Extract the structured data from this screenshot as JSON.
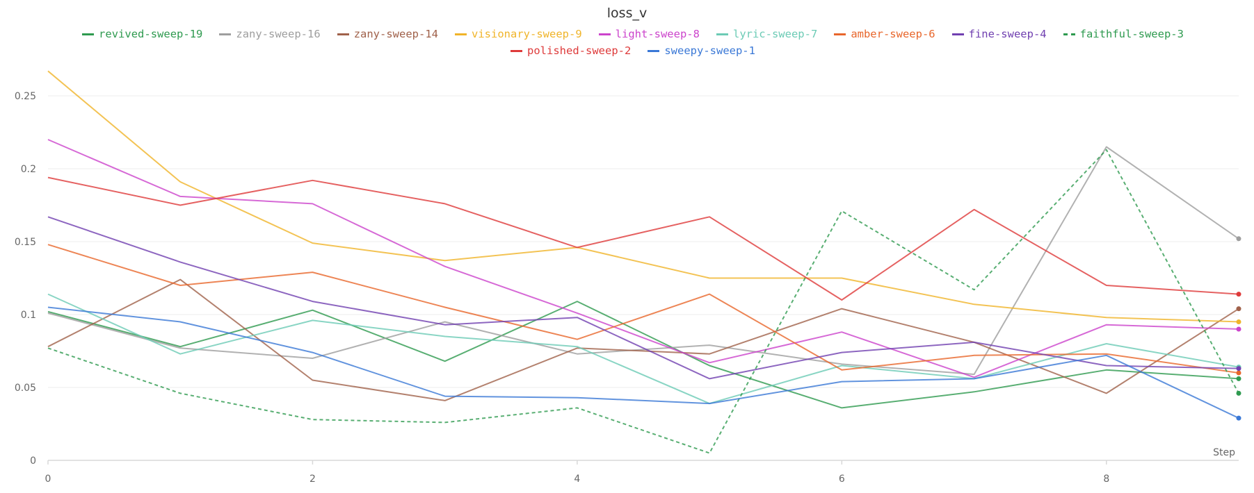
{
  "chart_data": {
    "type": "line",
    "title": "loss_v",
    "xlabel": "Step",
    "ylabel": "",
    "xlim": [
      0,
      9
    ],
    "ylim": [
      0,
      0.27
    ],
    "xticks": [
      0,
      2,
      4,
      6,
      8
    ],
    "yticks": [
      0,
      0.05,
      0.1,
      0.15,
      0.2,
      0.25
    ],
    "ytick_labels": [
      "0",
      "0.05",
      "0.1",
      "0.15",
      "0.2",
      "0.25"
    ],
    "grid": true,
    "legend_position": "top",
    "x": [
      0,
      1,
      2,
      3,
      4,
      5,
      6,
      7,
      8,
      9
    ],
    "series": [
      {
        "name": "revived-sweep-19",
        "color": "#2e9a4f",
        "dashed": false,
        "values": [
          0.102,
          0.078,
          0.103,
          0.068,
          0.109,
          0.065,
          0.036,
          0.047,
          0.062,
          0.056
        ]
      },
      {
        "name": "zany-sweep-16",
        "color": "#9e9e9e",
        "dashed": false,
        "values": [
          0.101,
          0.077,
          0.07,
          0.095,
          0.073,
          0.079,
          0.066,
          0.059,
          0.215,
          0.152
        ]
      },
      {
        "name": "zany-sweep-14",
        "color": "#a0614a",
        "dashed": false,
        "values": [
          0.078,
          0.124,
          0.055,
          0.041,
          0.077,
          0.073,
          0.104,
          0.081,
          0.046,
          0.104
        ]
      },
      {
        "name": "visionary-sweep-9",
        "color": "#f0b429",
        "dashed": false,
        "values": [
          0.267,
          0.191,
          0.149,
          0.137,
          0.146,
          0.125,
          0.125,
          0.107,
          0.098,
          0.095
        ]
      },
      {
        "name": "light-sweep-8",
        "color": "#cc44cc",
        "dashed": false,
        "values": [
          0.22,
          0.181,
          0.176,
          0.133,
          0.101,
          0.067,
          0.088,
          0.057,
          0.093,
          0.09
        ]
      },
      {
        "name": "lyric-sweep-7",
        "color": "#6ccbb5",
        "dashed": false,
        "values": [
          0.114,
          0.073,
          0.096,
          0.085,
          0.078,
          0.039,
          0.065,
          0.056,
          0.08,
          0.064
        ]
      },
      {
        "name": "amber-sweep-6",
        "color": "#e8662b",
        "dashed": false,
        "values": [
          0.148,
          0.12,
          0.129,
          0.105,
          0.083,
          0.114,
          0.062,
          0.072,
          0.073,
          0.06
        ]
      },
      {
        "name": "fine-sweep-4",
        "color": "#7040b0",
        "dashed": false,
        "values": [
          0.167,
          0.136,
          0.109,
          0.093,
          0.098,
          0.056,
          0.074,
          0.081,
          0.065,
          0.063
        ]
      },
      {
        "name": "faithful-sweep-3",
        "color": "#2e9a4f",
        "dashed": true,
        "values": [
          0.077,
          0.046,
          0.028,
          0.026,
          0.036,
          0.005,
          0.171,
          0.117,
          0.213,
          0.046
        ]
      },
      {
        "name": "polished-sweep-2",
        "color": "#de3a3a",
        "dashed": false,
        "values": [
          0.194,
          0.175,
          0.192,
          0.176,
          0.146,
          0.167,
          0.11,
          0.172,
          0.12,
          0.114
        ]
      },
      {
        "name": "sweepy-sweep-1",
        "color": "#3a78d6",
        "dashed": false,
        "values": [
          0.105,
          0.095,
          0.074,
          0.044,
          0.043,
          0.039,
          0.054,
          0.056,
          0.072,
          0.029
        ]
      }
    ]
  }
}
